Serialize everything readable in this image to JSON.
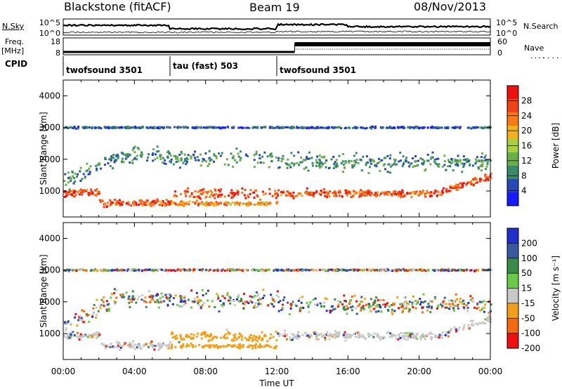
{
  "header": {
    "station": "Blackstone (fitACF)",
    "beam": "Beam 19",
    "date": "08/Nov/2013"
  },
  "left_labels": {
    "nsky": "N.Sky",
    "freq": "Freq.",
    "freq_unit": "[MHz]",
    "cpid": "CPID"
  },
  "right_labels": {
    "nsearch": "N.Search",
    "nave": "Nave"
  },
  "noise_axis": {
    "left_ticks": [
      "10^5",
      "10^0"
    ],
    "right_ticks": [
      "10^5",
      "10^0"
    ]
  },
  "freq_axis": {
    "left_ticks": [
      "18",
      "8"
    ],
    "right_ticks": [
      "60",
      "0"
    ]
  },
  "cpid_segments": [
    {
      "label": "twofsound 3501",
      "start_hour": 0,
      "end_hour": 6
    },
    {
      "label": "tau (fast) 503",
      "start_hour": 6,
      "end_hour": 12
    },
    {
      "label": "twofsound 3501",
      "start_hour": 12,
      "end_hour": 24
    }
  ],
  "chart_data": [
    {
      "type": "heatmap",
      "name": "power",
      "xlabel": "Time UT",
      "ylabel": "Slant Range [km]",
      "xlim": [
        0,
        24
      ],
      "ylim": [
        180,
        4500
      ],
      "x_ticks": [
        "00:00",
        "04:00",
        "08:00",
        "12:00",
        "16:00",
        "20:00",
        "00:00"
      ],
      "y_ticks": [
        1000,
        2000,
        3000,
        4000
      ],
      "colorbar": {
        "label": "Power [dB]",
        "ticks": [
          4,
          8,
          12,
          16,
          20,
          24,
          28
        ],
        "range": [
          0,
          32
        ],
        "colors": [
          "#1a1aff",
          "#2848b8",
          "#3a8a6a",
          "#6ab04a",
          "#a6d040",
          "#f2b01a",
          "#f87a14",
          "#f04418",
          "#ee1010"
        ]
      }
    },
    {
      "type": "heatmap",
      "name": "velocity",
      "xlabel": "Time UT",
      "ylabel": "Slant Range [km]",
      "xlim": [
        0,
        24
      ],
      "ylim": [
        180,
        4500
      ],
      "x_ticks": [
        "00:00",
        "04:00",
        "08:00",
        "12:00",
        "16:00",
        "20:00",
        "00:00"
      ],
      "y_ticks": [
        1000,
        2000,
        3000,
        4000
      ],
      "colorbar": {
        "label": "Velocity [m s⁻¹]",
        "ticks": [
          200,
          100,
          50,
          15,
          -15,
          -50,
          -100,
          -200
        ],
        "colors": [
          "#2030c8",
          "#3858a0",
          "#3a8a4a",
          "#6ac84a",
          "#c8c8c8",
          "#f2a01a",
          "#f26a14",
          "#ee1010"
        ]
      }
    }
  ]
}
